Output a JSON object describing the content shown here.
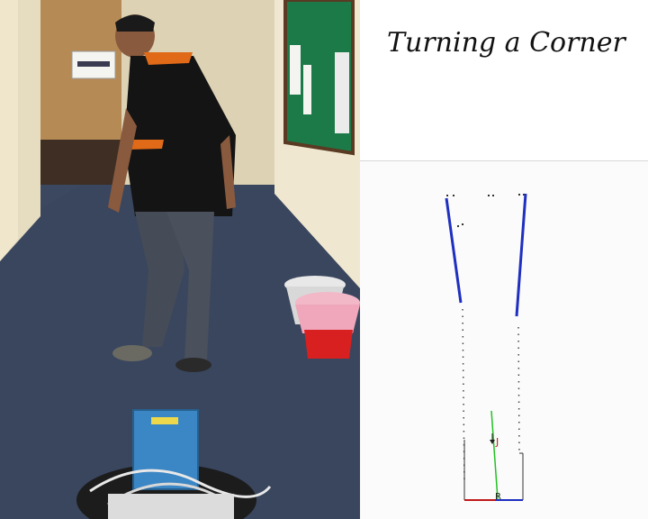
{
  "title": "Turning a Corner",
  "map": {
    "label_j": "J",
    "label_r": "R",
    "wall_color": "#1f2fbf",
    "path_color": "#22c022",
    "label_color": "#c01818",
    "baseline_color": "#c01818"
  },
  "photo": {
    "scene": "hallway-with-person-and-robot",
    "wall_sign_icon": "exit-sign-icon"
  }
}
